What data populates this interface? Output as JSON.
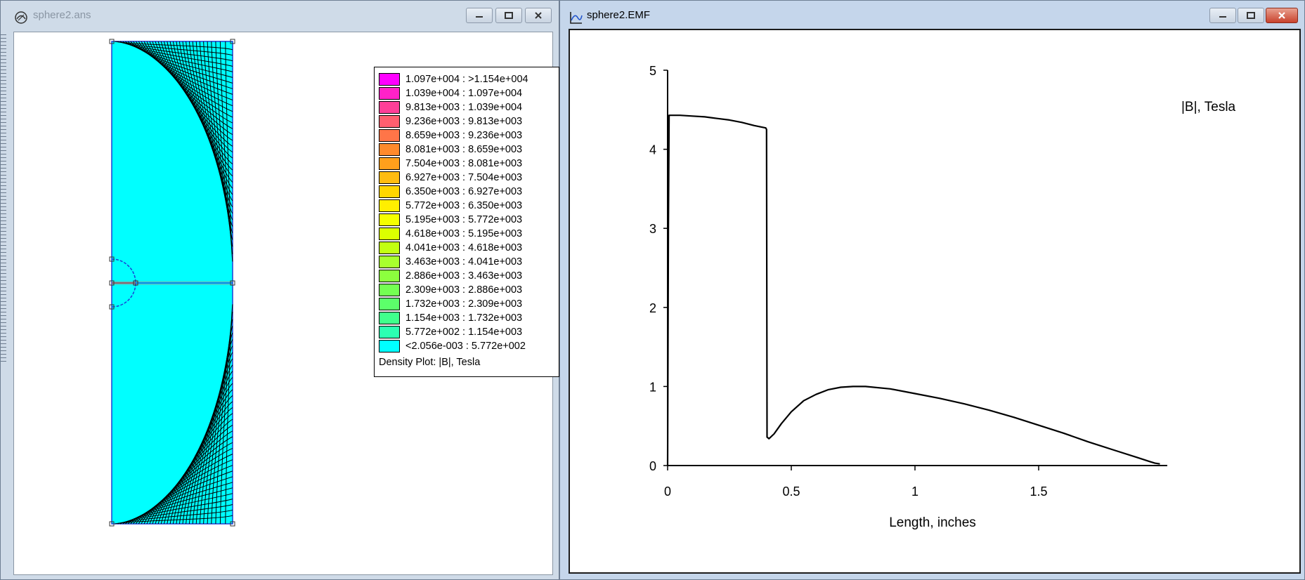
{
  "left_window": {
    "title": "sphere2.ans",
    "legend": {
      "rows": [
        {
          "label": "1.097e+004 : >1.154e+004",
          "color": "#ff00ff"
        },
        {
          "label": "1.039e+004 : 1.097e+004",
          "color": "#ff22c8"
        },
        {
          "label": "9.813e+003 : 1.039e+004",
          "color": "#ff3f98"
        },
        {
          "label": "9.236e+003 : 9.813e+003",
          "color": "#ff5f6f"
        },
        {
          "label": "8.659e+003 : 9.236e+003",
          "color": "#ff7548"
        },
        {
          "label": "8.081e+003 : 8.659e+003",
          "color": "#ff8a2c"
        },
        {
          "label": "7.504e+003 : 8.081e+003",
          "color": "#ffa01c"
        },
        {
          "label": "6.927e+003 : 7.504e+003",
          "color": "#ffbc10"
        },
        {
          "label": "6.350e+003 : 6.927e+003",
          "color": "#ffd600"
        },
        {
          "label": "5.772e+003 : 6.350e+003",
          "color": "#ffef00"
        },
        {
          "label": "5.195e+003 : 5.772e+003",
          "color": "#f5ff00"
        },
        {
          "label": "4.618e+003 : 5.195e+003",
          "color": "#dcff00"
        },
        {
          "label": "4.041e+003 : 4.618e+003",
          "color": "#c2ff12"
        },
        {
          "label": "3.463e+003 : 4.041e+003",
          "color": "#a8ff2e"
        },
        {
          "label": "2.886e+003 : 3.463e+003",
          "color": "#8cff3e"
        },
        {
          "label": "2.309e+003 : 2.886e+003",
          "color": "#74ff52"
        },
        {
          "label": "1.732e+003 : 2.309e+003",
          "color": "#5cff6a"
        },
        {
          "label": "1.154e+003 : 1.732e+003",
          "color": "#40ff8c"
        },
        {
          "label": "5.772e+002 : 1.154e+003",
          "color": "#2cffb2"
        },
        {
          "label": "<2.056e-003 : 5.772e+002",
          "color": "#00ffff"
        }
      ],
      "caption": "Density Plot: |B|, Tesla"
    }
  },
  "right_window": {
    "title": "sphere2.EMF"
  },
  "chart_data": {
    "type": "line",
    "title": "|B|, Tesla",
    "xlabel": "Length, inches",
    "ylabel": "",
    "xlim": [
      0,
      2
    ],
    "ylim": [
      0,
      5
    ],
    "x_ticks": [
      "0",
      "0.5",
      "1",
      "1.5"
    ],
    "y_ticks": [
      "0",
      "1",
      "2",
      "3",
      "4",
      "5"
    ],
    "grid": false,
    "series": [
      {
        "x": [
          0,
          0.003,
          0.006,
          0.01,
          0.05,
          0.1,
          0.15,
          0.2,
          0.25,
          0.3,
          0.35,
          0.397,
          0.4,
          0.402,
          0.41,
          0.43,
          0.46,
          0.5,
          0.55,
          0.6,
          0.65,
          0.7,
          0.75,
          0.8,
          0.9,
          1.0,
          1.1,
          1.2,
          1.3,
          1.4,
          1.5,
          1.6,
          1.7,
          1.8,
          1.9,
          1.95,
          1.97,
          1.99
        ],
        "y": [
          0,
          3.0,
          4.43,
          4.43,
          4.43,
          4.42,
          4.41,
          4.39,
          4.37,
          4.34,
          4.3,
          4.27,
          4.25,
          0.36,
          0.34,
          0.4,
          0.53,
          0.68,
          0.82,
          0.9,
          0.96,
          0.99,
          1.0,
          1.0,
          0.97,
          0.91,
          0.85,
          0.78,
          0.7,
          0.61,
          0.51,
          0.41,
          0.3,
          0.2,
          0.1,
          0.05,
          0.03,
          0.02
        ]
      }
    ]
  }
}
